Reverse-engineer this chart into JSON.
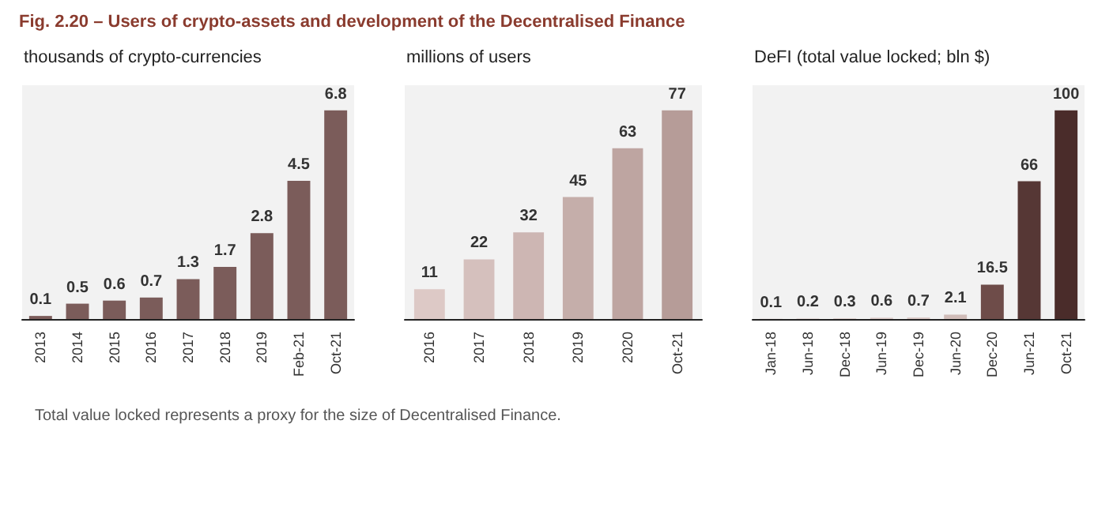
{
  "chart_data": [
    {
      "type": "bar",
      "title": "Fig. 2.20 – Users of crypto-assets and development of the Decentralised Finance",
      "subtitle": "thousands of crypto-currencies",
      "categories": [
        "2013",
        "2014",
        "2015",
        "2016",
        "2017",
        "2018",
        "2019",
        "Feb-21",
        "Oct-21"
      ],
      "values": [
        0.1,
        0.5,
        0.6,
        0.7,
        1.3,
        1.7,
        2.8,
        4.5,
        6.8
      ],
      "colors": [
        "#7b5c5a",
        "#7b5c5a",
        "#7b5c5a",
        "#7b5c5a",
        "#7b5c5a",
        "#7b5c5a",
        "#7b5c5a",
        "#7b5c5a",
        "#7b5c5a"
      ],
      "data_labels": true
    },
    {
      "type": "bar",
      "subtitle": "millions of users",
      "categories": [
        "2016",
        "2017",
        "2018",
        "2019",
        "2020",
        "Oct-21"
      ],
      "values": [
        11,
        22,
        32,
        45,
        63,
        77
      ],
      "colors": [
        "#ddc9c6",
        "#d5c0bd",
        "#cdb6b3",
        "#c5aeaa",
        "#bea5a1",
        "#b69c98"
      ],
      "data_labels": true
    },
    {
      "type": "bar",
      "subtitle": "DeFI (total value locked; bln $)",
      "categories": [
        "Jan-18",
        "Jun-18",
        "Dec-18",
        "Jun-19",
        "Dec-19",
        "Jun-20",
        "Dec-20",
        "Jun-21",
        "Oct-21"
      ],
      "values": [
        0.1,
        0.2,
        0.3,
        0.6,
        0.7,
        2.1,
        16.5,
        66,
        100
      ],
      "colors": [
        "#d9c7c4",
        "#d9c7c4",
        "#d9c7c4",
        "#d9c7c4",
        "#d9c7c4",
        "#d0bcb8",
        "#6e4c49",
        "#563735",
        "#4a2c2a"
      ],
      "data_labels": true,
      "annotations": [
        "Total value locked represents a proxy for the size of Decentralised Finance."
      ]
    }
  ]
}
